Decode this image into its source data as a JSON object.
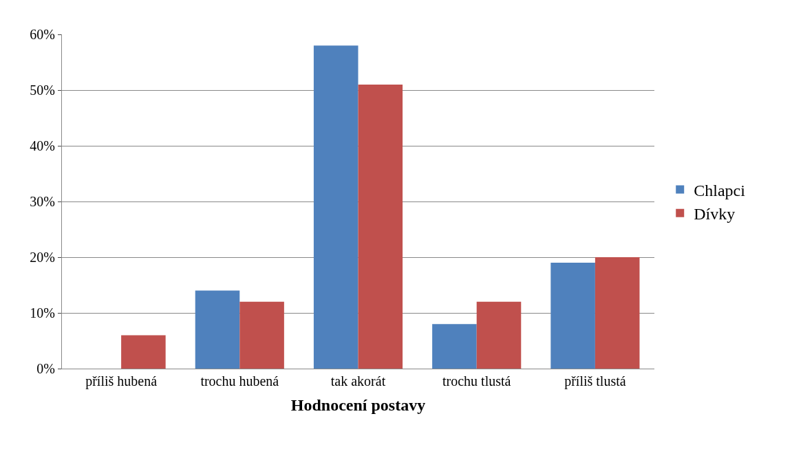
{
  "chart_data": {
    "type": "bar",
    "xlabel": "Hodnocení postavy",
    "categories": [
      "příliš hubená",
      "trochu hubená",
      "tak akorát",
      "trochu tlustá",
      "příliš tlustá"
    ],
    "series": [
      {
        "name": "Chlapci",
        "color": "#4f81bd",
        "values": [
          0,
          14,
          58,
          8,
          19
        ]
      },
      {
        "name": "Dívky",
        "color": "#c0504d",
        "values": [
          6,
          12,
          51,
          12,
          20
        ]
      }
    ],
    "ylim": [
      0,
      60
    ],
    "yticks": [
      {
        "value": 0,
        "label": "0%"
      },
      {
        "value": 10,
        "label": "10%"
      },
      {
        "value": 20,
        "label": "20%"
      },
      {
        "value": 30,
        "label": "30%"
      },
      {
        "value": 40,
        "label": "40%"
      },
      {
        "value": 50,
        "label": "50%"
      },
      {
        "value": 60,
        "label": "60%"
      }
    ],
    "grid": "y",
    "legend": "right"
  }
}
